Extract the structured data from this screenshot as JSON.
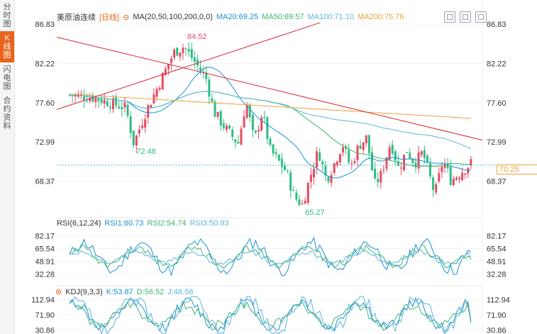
{
  "sidebar": {
    "tabs": [
      {
        "label": "分时图",
        "active": false
      },
      {
        "label": "K线图",
        "active": true
      },
      {
        "label": "闪电图",
        "active": false
      },
      {
        "label": "合约资料",
        "active": false
      }
    ]
  },
  "header": {
    "title": "美原油连续",
    "period": "[日线]",
    "ma_params": "MA(20,50,100,200,0,0)",
    "ma": [
      {
        "label": "MA20:69.25",
        "color": "#1a90d8"
      },
      {
        "label": "MA50:69.57",
        "color": "#3cb371"
      },
      {
        "label": "MA100:71.10",
        "color": "#5bb5d6"
      },
      {
        "label": "MA200:75.76",
        "color": "#e8a23c"
      }
    ]
  },
  "rsi_panel": {
    "params": "RSI(6,12,24)",
    "rsi1": "RSI1:60.73",
    "rsi2": "RSI2:54.74",
    "rsi3": "RSI3:50.93"
  },
  "kdj_panel": {
    "params": "KDJ(9,3,3)",
    "k": "K:53.87",
    "d": "D:56.52",
    "j": "J:48.56"
  },
  "colors": {
    "up": "#e84a5f",
    "down": "#2ebd85",
    "trendline": "#d9262e",
    "ma20": "#1a90d8",
    "ma50": "#3cb371",
    "ma100": "#5bb5d6",
    "ma200": "#e8a23c",
    "rsi1": "#1a90d8",
    "rsi2": "#3cb371",
    "rsi3": "#5bb5d6",
    "k": "#1a90d8",
    "d": "#3cb371",
    "j": "#5bb5d6"
  },
  "chart_data": [
    {
      "type": "candlestick",
      "title": "美原油连续 [日线]",
      "y_ticks": [
        "86.83",
        "82.22",
        "77.60",
        "72.99",
        "68.37"
      ],
      "ylim": [
        64.5,
        86.83
      ],
      "annotations": {
        "high": "84.52",
        "low1": "72.48",
        "low2": "65.27"
      },
      "last_price": "70.25",
      "ma": {
        "MA20": 69.25,
        "MA50": 69.57,
        "MA100": 71.1,
        "MA200": 75.76
      },
      "candles_count": 139
    },
    {
      "type": "line",
      "title": "RSI(6,12,24)",
      "y_ticks": [
        "82.17",
        "65.54",
        "48.91",
        "32.28"
      ],
      "ylim": [
        20,
        88
      ],
      "series": [
        {
          "name": "RSI1",
          "last": 60.73
        },
        {
          "name": "RSI2",
          "last": 54.74
        },
        {
          "name": "RSI3",
          "last": 50.93
        }
      ]
    },
    {
      "type": "line",
      "title": "KDJ(9,3,3)",
      "y_ticks": [
        "112.94",
        "71.90",
        "30.86"
      ],
      "ylim": [
        20,
        122
      ],
      "series": [
        {
          "name": "K",
          "last": 53.87
        },
        {
          "name": "D",
          "last": 56.52
        },
        {
          "name": "J",
          "last": 48.56
        }
      ]
    }
  ]
}
